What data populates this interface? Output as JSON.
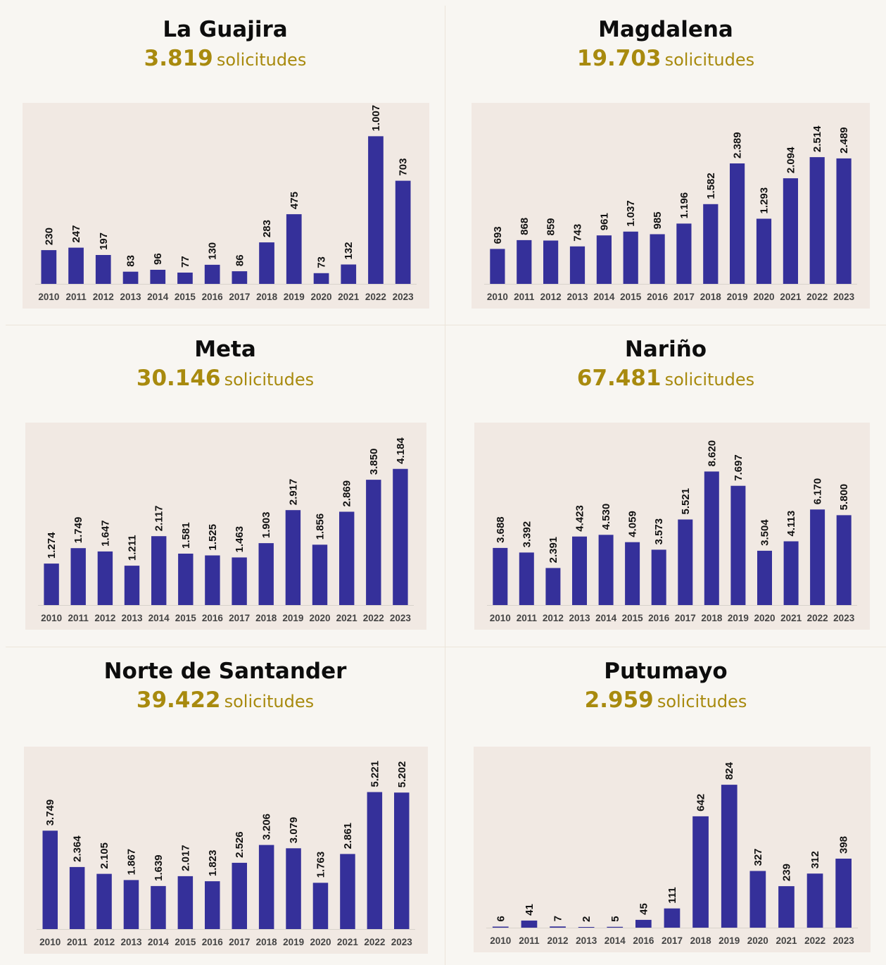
{
  "unit_label": "solicitudes",
  "colors": {
    "bar": "#35309a",
    "total": "#a88a0e",
    "chart_bg": "#f1e9e3",
    "page_bg": "#f8f6f2"
  },
  "panels": [
    {
      "title": "La Guajira",
      "total": "3.819",
      "unit": "solicitudes"
    },
    {
      "title": "Magdalena",
      "total": "19.703",
      "unit": "solicitudes"
    },
    {
      "title": "Meta",
      "total": "30.146",
      "unit": "solicitudes"
    },
    {
      "title": "Nariño",
      "total": "67.481",
      "unit": "solicitudes"
    },
    {
      "title": "Norte de Santander",
      "total": "39.422",
      "unit": "solicitudes"
    },
    {
      "title": "Putumayo",
      "total": "2.959",
      "unit": "solicitudes"
    }
  ],
  "chart_data": [
    {
      "type": "bar",
      "title": "La Guajira",
      "categories": [
        "2010",
        "2011",
        "2012",
        "2013",
        "2014",
        "2015",
        "2016",
        "2017",
        "2018",
        "2019",
        "2020",
        "2021",
        "2022",
        "2023"
      ],
      "values": [
        230,
        247,
        197,
        83,
        96,
        77,
        130,
        86,
        283,
        475,
        73,
        132,
        1007,
        703
      ],
      "labels": [
        "230",
        "247",
        "197",
        "83",
        "96",
        "77",
        "130",
        "86",
        "283",
        "475",
        "73",
        "132",
        "1.007",
        "703"
      ],
      "ylim": [
        0,
        1100
      ],
      "grid": false
    },
    {
      "type": "bar",
      "title": "Magdalena",
      "categories": [
        "2010",
        "2011",
        "2012",
        "2013",
        "2014",
        "2015",
        "2016",
        "2017",
        "2018",
        "2019",
        "2020",
        "2021",
        "2022",
        "2023"
      ],
      "values": [
        693,
        868,
        859,
        743,
        961,
        1037,
        985,
        1196,
        1582,
        2389,
        1293,
        2094,
        2514,
        2489
      ],
      "labels": [
        "693",
        "868",
        "859",
        "743",
        "961",
        "1.037",
        "985",
        "1.196",
        "1.582",
        "2.389",
        "1.293",
        "2.094",
        "2.514",
        "2.489"
      ],
      "ylim": [
        0,
        3200
      ],
      "grid": false
    },
    {
      "type": "bar",
      "title": "Meta",
      "categories": [
        "2010",
        "2011",
        "2012",
        "2013",
        "2014",
        "2015",
        "2016",
        "2017",
        "2018",
        "2019",
        "2020",
        "2021",
        "2022",
        "2023"
      ],
      "values": [
        1274,
        1749,
        1647,
        1211,
        2117,
        1581,
        1525,
        1463,
        1903,
        2917,
        1856,
        2869,
        3850,
        4184
      ],
      "labels": [
        "1.274",
        "1.749",
        "1.647",
        "1.211",
        "2.117",
        "1.581",
        "1.525",
        "1.463",
        "1.903",
        "2.917",
        "1.856",
        "2.869",
        "3.850",
        "4.184"
      ],
      "ylim": [
        0,
        5000
      ],
      "grid": false
    },
    {
      "type": "bar",
      "title": "Nariño",
      "categories": [
        "2010",
        "2011",
        "2012",
        "2013",
        "2014",
        "2015",
        "2016",
        "2017",
        "2018",
        "2019",
        "2020",
        "2021",
        "2022",
        "2023"
      ],
      "values": [
        3688,
        3392,
        2391,
        4423,
        4530,
        4059,
        3573,
        5521,
        8620,
        7697,
        3504,
        4113,
        6170,
        5800
      ],
      "labels": [
        "3.688",
        "3.392",
        "2.391",
        "4.423",
        "4.530",
        "4.059",
        "3.573",
        "5.521",
        "8.620",
        "7.697",
        "3.504",
        "4.113",
        "6.170",
        "5.800"
      ],
      "ylim": [
        0,
        10500
      ],
      "grid": false
    },
    {
      "type": "bar",
      "title": "Norte de Santander",
      "categories": [
        "2010",
        "2011",
        "2012",
        "2013",
        "2014",
        "2015",
        "2016",
        "2017",
        "2018",
        "2019",
        "2020",
        "2021",
        "2022",
        "2023"
      ],
      "values": [
        3749,
        2364,
        2105,
        1867,
        1639,
        2017,
        1823,
        2526,
        3206,
        3079,
        1763,
        2861,
        5221,
        5202
      ],
      "labels": [
        "3.749",
        "2.364",
        "2.105",
        "1.867",
        "1.639",
        "2.017",
        "1.823",
        "2.526",
        "3.206",
        "3.079",
        "1.763",
        "2.861",
        "5.221",
        "5.202"
      ],
      "ylim": [
        0,
        6200
      ],
      "grid": false
    },
    {
      "type": "bar",
      "title": "Putumayo",
      "categories": [
        "2010",
        "2011",
        "2012",
        "2013",
        "2014",
        "2016",
        "2017",
        "2018",
        "2019",
        "2020",
        "2021",
        "2022",
        "2023"
      ],
      "values": [
        6,
        41,
        7,
        2,
        5,
        45,
        111,
        642,
        824,
        327,
        239,
        312,
        398
      ],
      "labels": [
        "6",
        "41",
        "7",
        "2",
        "5",
        "45",
        "111",
        "642",
        "824",
        "327",
        "239",
        "312",
        "398"
      ],
      "ylim": [
        0,
        930
      ],
      "grid": false
    }
  ]
}
